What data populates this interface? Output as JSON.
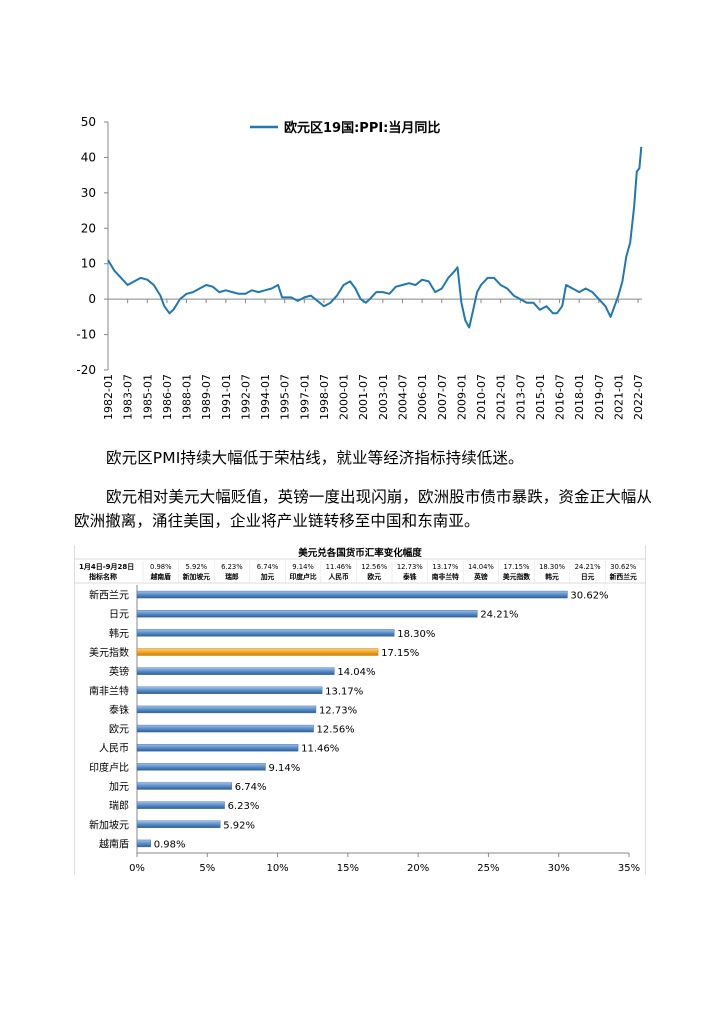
{
  "paragraphs": {
    "p1": "欧元区PMI持续大幅低于荣枯线，就业等经济指标持续低迷。",
    "p2": "欧元相对美元大幅贬值，英镑一度出现闪崩，欧洲股市债市暴跌，资金正大幅从欧洲撤离，涌往美国，企业将产业链转移至中国和东南亚。"
  },
  "chart_data": [
    {
      "type": "line",
      "title": "",
      "legend": "欧元区19国:PPI:当月同比",
      "legend_position": "top-center",
      "color": "#1f77b4",
      "ylim": [
        -20,
        50
      ],
      "yticks": [
        -20,
        -10,
        0,
        10,
        20,
        30,
        40,
        50
      ],
      "xlim": [
        1982.0,
        2022.8
      ],
      "xtick_labels": [
        "1982-01",
        "1983-07",
        "1985-01",
        "1986-07",
        "1988-01",
        "1989-07",
        "1991-01",
        "1992-07",
        "1994-01",
        "1995-07",
        "1997-01",
        "1998-07",
        "2000-01",
        "2001-07",
        "2003-01",
        "2004-07",
        "2006-01",
        "2007-07",
        "2009-01",
        "2010-07",
        "2012-01",
        "2013-07",
        "2015-01",
        "2016-07",
        "2018-01",
        "2019-07",
        "2021-01",
        "2022-07"
      ],
      "x": [
        1982.0,
        1982.5,
        1983.0,
        1983.5,
        1984.0,
        1984.5,
        1985.0,
        1985.5,
        1986.0,
        1986.3,
        1986.7,
        1987.0,
        1987.5,
        1988.0,
        1988.5,
        1989.0,
        1989.5,
        1990.0,
        1990.5,
        1991.0,
        1991.5,
        1992.0,
        1992.5,
        1993.0,
        1993.5,
        1994.0,
        1994.5,
        1995.0,
        1995.3,
        1995.7,
        1996.0,
        1996.5,
        1997.0,
        1997.5,
        1998.0,
        1998.5,
        1999.0,
        1999.5,
        2000.0,
        2000.5,
        2000.9,
        2001.3,
        2001.7,
        2002.0,
        2002.5,
        2003.0,
        2003.5,
        2004.0,
        2004.5,
        2005.0,
        2005.5,
        2006.0,
        2006.5,
        2007.0,
        2007.5,
        2008.0,
        2008.5,
        2008.7,
        2009.0,
        2009.3,
        2009.6,
        2009.9,
        2010.2,
        2010.5,
        2011.0,
        2011.5,
        2012.0,
        2012.5,
        2013.0,
        2013.5,
        2014.0,
        2014.5,
        2015.0,
        2015.5,
        2016.0,
        2016.3,
        2016.7,
        2017.0,
        2017.5,
        2018.0,
        2018.5,
        2019.0,
        2019.5,
        2020.0,
        2020.4,
        2020.7,
        2021.0,
        2021.3,
        2021.6,
        2021.9,
        2022.2,
        2022.4,
        2022.6,
        2022.75
      ],
      "y": [
        11,
        8,
        6,
        4,
        5,
        6,
        5.5,
        4,
        1,
        -2,
        -4,
        -3,
        0,
        1.5,
        2,
        3,
        4,
        3.5,
        2,
        2.5,
        2,
        1.5,
        1.5,
        2.5,
        2,
        2.5,
        3,
        4,
        0.5,
        0.5,
        0.5,
        -0.5,
        0.5,
        1,
        -0.5,
        -2,
        -1,
        1,
        4,
        5,
        3,
        0,
        -1,
        0,
        2,
        2,
        1.5,
        3.5,
        4,
        4.5,
        4,
        5.5,
        5,
        2,
        3,
        6,
        8,
        9,
        -1,
        -6,
        -8,
        -3,
        2,
        4,
        6,
        6,
        4,
        3,
        1,
        0,
        -1,
        -1,
        -3,
        -2,
        -4,
        -4,
        -2,
        4,
        3,
        2,
        3,
        2,
        0,
        -2,
        -5,
        -2,
        1,
        5,
        12,
        16,
        26,
        36,
        37,
        43
      ]
    },
    {
      "type": "bar",
      "orientation": "horizontal",
      "title": "美元兑各国货币汇率变化幅度",
      "header_label_top": "1月4日-9月28日",
      "header_label_bottom": "指标名称",
      "header": [
        {
          "pct": "0.98%",
          "name": "越南盾"
        },
        {
          "pct": "5.92%",
          "name": "新加坡元"
        },
        {
          "pct": "6.23%",
          "name": "瑞郎"
        },
        {
          "pct": "6.74%",
          "name": "加元"
        },
        {
          "pct": "9.14%",
          "name": "印度卢比"
        },
        {
          "pct": "11.46%",
          "name": "人民币"
        },
        {
          "pct": "12.56%",
          "name": "欧元"
        },
        {
          "pct": "12.73%",
          "name": "泰铢"
        },
        {
          "pct": "13.17%",
          "name": "南非兰特"
        },
        {
          "pct": "14.04%",
          "name": "英镑"
        },
        {
          "pct": "17.15%",
          "name": "美元指数"
        },
        {
          "pct": "18.30%",
          "name": "韩元"
        },
        {
          "pct": "24.21%",
          "name": "日元"
        },
        {
          "pct": "30.62%",
          "name": "新西兰元"
        }
      ],
      "categories": [
        "新西兰元",
        "日元",
        "韩元",
        "美元指数",
        "英镑",
        "南非兰特",
        "泰铢",
        "欧元",
        "人民币",
        "印度卢比",
        "加元",
        "瑞郎",
        "新加坡元",
        "越南盾"
      ],
      "values": [
        30.62,
        24.21,
        18.3,
        17.15,
        14.04,
        13.17,
        12.73,
        12.56,
        11.46,
        9.14,
        6.74,
        6.23,
        5.92,
        0.98
      ],
      "value_labels": [
        "30.62%",
        "24.21%",
        "18.30%",
        "17.15%",
        "14.04%",
        "13.17%",
        "12.73%",
        "12.56%",
        "11.46%",
        "9.14%",
        "6.74%",
        "6.23%",
        "5.92%",
        "0.98%"
      ],
      "highlight": "美元指数",
      "bar_color": "#5b8ec8",
      "highlight_color": "#f5a623",
      "xlim": [
        0,
        35
      ],
      "xtick_labels": [
        "0%",
        "5%",
        "10%",
        "15%",
        "20%",
        "25%",
        "30%",
        "35%"
      ]
    }
  ]
}
